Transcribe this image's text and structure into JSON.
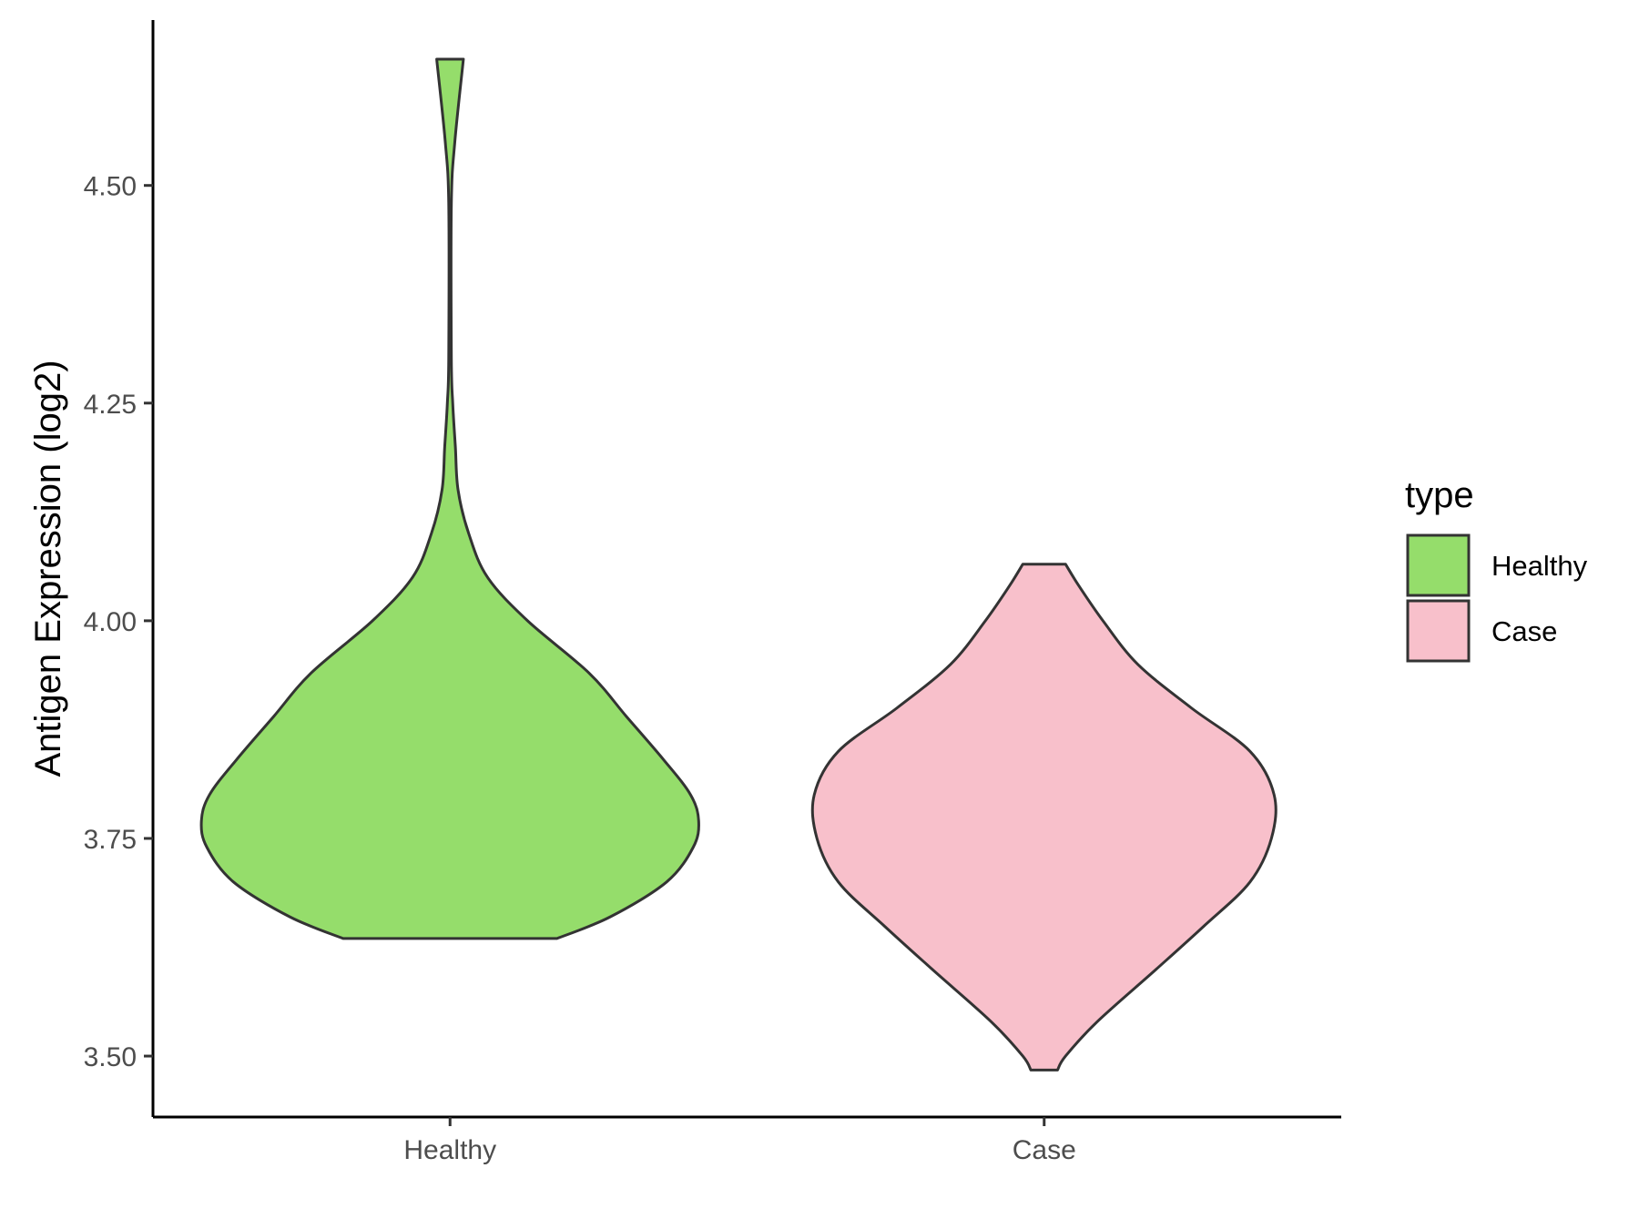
{
  "chart_data": {
    "type": "violin",
    "title": "",
    "xlabel": "",
    "ylabel": "Antigen Expression (log2)",
    "categories": [
      "Healthy",
      "Case"
    ],
    "y_ticks": [
      "3.50",
      "3.75",
      "4.00",
      "4.25",
      "4.50"
    ],
    "ylim": [
      3.43,
      4.69
    ],
    "grid": false,
    "legend": {
      "title": "type",
      "position": "right",
      "entries": [
        {
          "label": "Healthy",
          "color": "#95DD6B"
        },
        {
          "label": "Case",
          "color": "#F8C0CB"
        }
      ]
    },
    "series": [
      {
        "name": "Healthy",
        "color": "#95DD6B",
        "min": 3.635,
        "max": 4.645,
        "density_profile": [
          [
            3.635,
            0.4
          ],
          [
            3.66,
            0.6
          ],
          [
            3.7,
            0.81
          ],
          [
            3.74,
            0.91
          ],
          [
            3.77,
            0.93
          ],
          [
            3.8,
            0.9
          ],
          [
            3.84,
            0.8
          ],
          [
            3.89,
            0.66
          ],
          [
            3.94,
            0.52
          ],
          [
            4.0,
            0.29
          ],
          [
            4.05,
            0.14
          ],
          [
            4.1,
            0.07
          ],
          [
            4.15,
            0.03
          ],
          [
            4.2,
            0.02
          ],
          [
            4.25,
            0.01
          ],
          [
            4.3,
            0.005
          ],
          [
            4.48,
            0.005
          ],
          [
            4.55,
            0.018
          ],
          [
            4.645,
            0.05
          ]
        ]
      },
      {
        "name": "Case",
        "color": "#F8C0CB",
        "min": 3.484,
        "max": 4.065,
        "density_profile": [
          [
            3.484,
            0.05
          ],
          [
            3.5,
            0.08
          ],
          [
            3.54,
            0.2
          ],
          [
            3.6,
            0.42
          ],
          [
            3.65,
            0.6
          ],
          [
            3.7,
            0.77
          ],
          [
            3.75,
            0.85
          ],
          [
            3.8,
            0.86
          ],
          [
            3.85,
            0.77
          ],
          [
            3.9,
            0.55
          ],
          [
            3.95,
            0.35
          ],
          [
            4.0,
            0.22
          ],
          [
            4.04,
            0.13
          ],
          [
            4.065,
            0.08
          ]
        ]
      }
    ]
  }
}
